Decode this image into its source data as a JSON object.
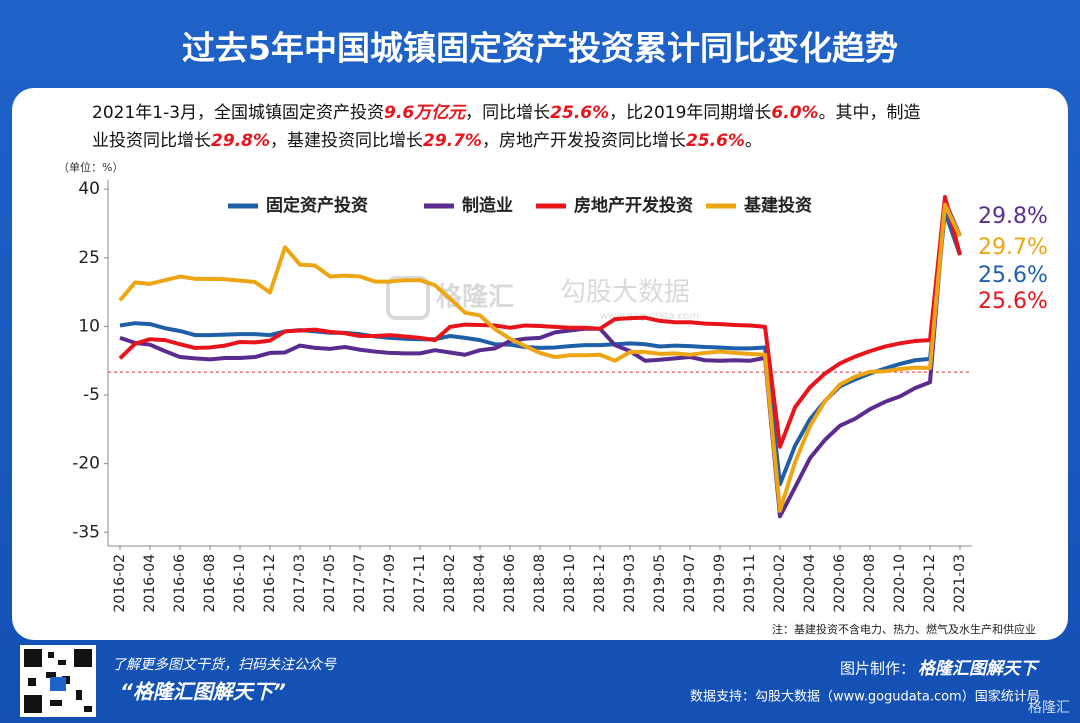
{
  "header": {
    "title": "过去5年中国城镇固定资产投资累计同比变化趋势"
  },
  "intro_lines": [
    [
      {
        "text": "2021年1-3月，全国城镇固定资产投资",
        "emph": false
      },
      {
        "text": "9.6万亿元",
        "emph": true
      },
      {
        "text": "，同比增长",
        "emph": false
      },
      {
        "text": "25.6%",
        "emph": true
      },
      {
        "text": "，比2019年同期增长",
        "emph": false
      },
      {
        "text": "6.0%",
        "emph": true
      },
      {
        "text": "。其中，制造",
        "emph": false
      }
    ],
    [
      {
        "text": "业投资同比增长",
        "emph": false
      },
      {
        "text": "29.8%",
        "emph": true
      },
      {
        "text": "，基建投资同比增长",
        "emph": false
      },
      {
        "text": "29.7%",
        "emph": true
      },
      {
        "text": "，房地产开发投资同比增长",
        "emph": false
      },
      {
        "text": "25.6%",
        "emph": true
      },
      {
        "text": "。",
        "emph": false
      }
    ]
  ],
  "chart_data": {
    "type": "line",
    "unit_label": "（单位：%）",
    "categories": [
      "2016-02",
      null,
      "2016-04",
      null,
      "2016-06",
      null,
      "2016-08",
      null,
      "2016-10",
      null,
      "2016-12",
      null,
      "2017-03",
      null,
      "2017-05",
      null,
      "2017-07",
      null,
      "2017-09",
      null,
      "2017-11",
      null,
      "2018-02",
      null,
      "2018-04",
      null,
      "2018-06",
      null,
      "2018-08",
      null,
      "2018-10",
      null,
      "2018-12",
      null,
      "2019-03",
      null,
      "2019-05",
      null,
      "2019-07",
      null,
      "2019-09",
      null,
      "2019-11",
      null,
      "2020-02",
      null,
      "2020-04",
      null,
      "2020-06",
      null,
      "2020-08",
      null,
      "2020-10",
      null,
      "2020-12",
      null,
      "2021-03"
    ],
    "ylim": [
      -38,
      42
    ],
    "yticks": [
      40,
      25,
      10,
      -5,
      -20,
      -35
    ],
    "reference_line": 0,
    "reference_color": "#d9302c",
    "series": [
      {
        "name": "固定资产投资",
        "color": "#1f5fa8",
        "end_label": "25.6%",
        "values": [
          10.2,
          10.7,
          10.5,
          9.6,
          9.0,
          8.1,
          8.1,
          8.2,
          8.3,
          8.3,
          8.1,
          8.9,
          9.2,
          8.9,
          8.6,
          8.6,
          8.3,
          7.8,
          7.5,
          7.3,
          7.2,
          7.2,
          7.9,
          7.5,
          7.0,
          6.1,
          6.0,
          5.5,
          5.3,
          5.4,
          5.7,
          5.9,
          5.9,
          6.1,
          6.3,
          6.1,
          5.6,
          5.8,
          5.7,
          5.5,
          5.4,
          5.2,
          5.2,
          5.4,
          -24.5,
          -16.1,
          -10.3,
          -6.3,
          -3.1,
          -1.6,
          -0.3,
          0.8,
          1.8,
          2.6,
          2.9,
          35.0,
          25.6
        ]
      },
      {
        "name": "制造业",
        "color": "#5b2c8f",
        "end_label": "29.8%",
        "values": [
          7.5,
          6.4,
          6.0,
          4.6,
          3.3,
          3.0,
          2.8,
          3.1,
          3.1,
          3.3,
          4.2,
          4.3,
          5.8,
          5.3,
          5.1,
          5.5,
          4.9,
          4.5,
          4.2,
          4.1,
          4.1,
          4.8,
          4.3,
          3.8,
          4.8,
          5.2,
          6.8,
          7.3,
          7.5,
          8.7,
          9.1,
          9.5,
          9.5,
          5.9,
          4.6,
          2.5,
          2.7,
          3.0,
          3.3,
          2.6,
          2.5,
          2.6,
          2.5,
          3.1,
          -31.5,
          -25.2,
          -18.8,
          -14.8,
          -11.7,
          -10.2,
          -8.1,
          -6.5,
          -5.3,
          -3.5,
          -2.2,
          37.3,
          29.8
        ]
      },
      {
        "name": "房地产开发投资",
        "color": "#e8141b",
        "end_label": "25.6%",
        "values": [
          3.0,
          6.2,
          7.2,
          7.0,
          6.1,
          5.3,
          5.4,
          5.8,
          6.6,
          6.5,
          6.9,
          8.9,
          9.1,
          9.3,
          8.8,
          8.5,
          7.9,
          7.9,
          8.1,
          7.8,
          7.5,
          7.0,
          9.9,
          10.4,
          10.3,
          10.2,
          9.7,
          10.2,
          10.1,
          9.9,
          9.7,
          9.7,
          9.5,
          11.6,
          11.8,
          11.9,
          11.2,
          10.9,
          10.9,
          10.6,
          10.5,
          10.3,
          10.2,
          9.9,
          -16.3,
          -7.7,
          -3.3,
          -0.3,
          1.9,
          3.4,
          4.6,
          5.6,
          6.3,
          6.8,
          7.0,
          38.3,
          25.6
        ]
      },
      {
        "name": "基建投资",
        "color": "#eda513",
        "end_label": "29.7%",
        "values": [
          15.7,
          19.6,
          19.3,
          20.1,
          20.9,
          20.4,
          20.4,
          20.3,
          20.0,
          19.7,
          17.4,
          27.3,
          23.5,
          23.3,
          20.9,
          21.1,
          20.9,
          19.8,
          19.8,
          20.1,
          20.1,
          19.0,
          16.1,
          13.0,
          12.4,
          9.4,
          7.3,
          5.7,
          4.2,
          3.3,
          3.7,
          3.7,
          3.8,
          2.5,
          4.4,
          4.4,
          4.0,
          4.1,
          3.8,
          4.2,
          4.5,
          4.2,
          4.0,
          3.8,
          -30.3,
          -19.7,
          -11.8,
          -6.3,
          -2.7,
          -1.0,
          0.1,
          0.2,
          0.7,
          1.0,
          0.9,
          36.6,
          29.7
        ]
      }
    ],
    "note": "注：基建投资不含电力、热力、燃气及水生产和供应业"
  },
  "watermark": {
    "brand": "格隆汇",
    "partner": "勾股大数据",
    "site": "www.gogudata.com"
  },
  "footer": {
    "follow": "了解更多图文干货，扫码关注公众号",
    "account": "“格隆汇图解天下”",
    "made_by_label": "图片制作：",
    "made_by": "格隆汇图解天下",
    "data_support": "数据支持：勾股大数据（www.gogudata.com）国家统计局",
    "logo": "格隆汇"
  }
}
